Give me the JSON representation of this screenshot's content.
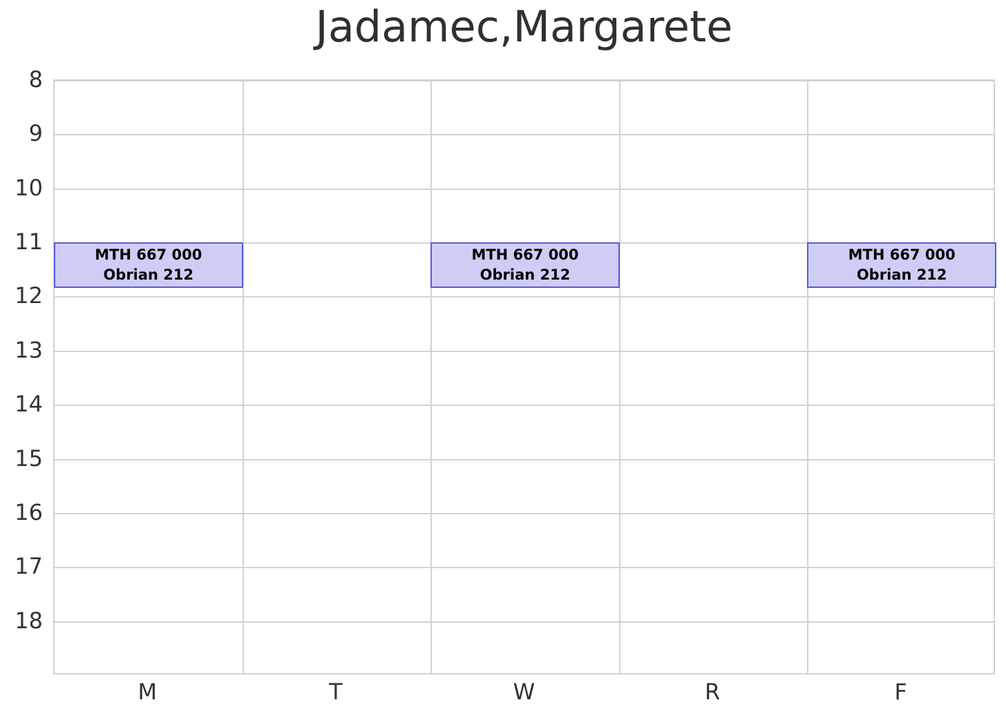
{
  "chart_data": {
    "type": "table",
    "subtype": "weekly_schedule",
    "title": "Jadamec,Margarete",
    "x_categories": [
      "M",
      "T",
      "W",
      "R",
      "F"
    ],
    "y_ticks": [
      8,
      9,
      10,
      11,
      12,
      13,
      14,
      15,
      16,
      17,
      18
    ],
    "ylim": [
      8,
      19
    ],
    "y_direction": "down",
    "grid": true,
    "legend": false,
    "colors": {
      "background": "#ffffff",
      "gridline": "#d3d3d3",
      "title_text": "#303030",
      "tick_text": "#333333",
      "event_fill": "#cdcdf6",
      "event_border": "#5a5ad8",
      "event_text": "#050505"
    },
    "events": [
      {
        "day": "M",
        "start": 11.0,
        "end": 11.83,
        "lines": [
          "MTH 667 000",
          "Obrian 212"
        ]
      },
      {
        "day": "W",
        "start": 11.0,
        "end": 11.83,
        "lines": [
          "MTH 667 000",
          "Obrian 212"
        ]
      },
      {
        "day": "F",
        "start": 11.0,
        "end": 11.83,
        "lines": [
          "MTH 667 000",
          "Obrian 212"
        ]
      }
    ]
  }
}
